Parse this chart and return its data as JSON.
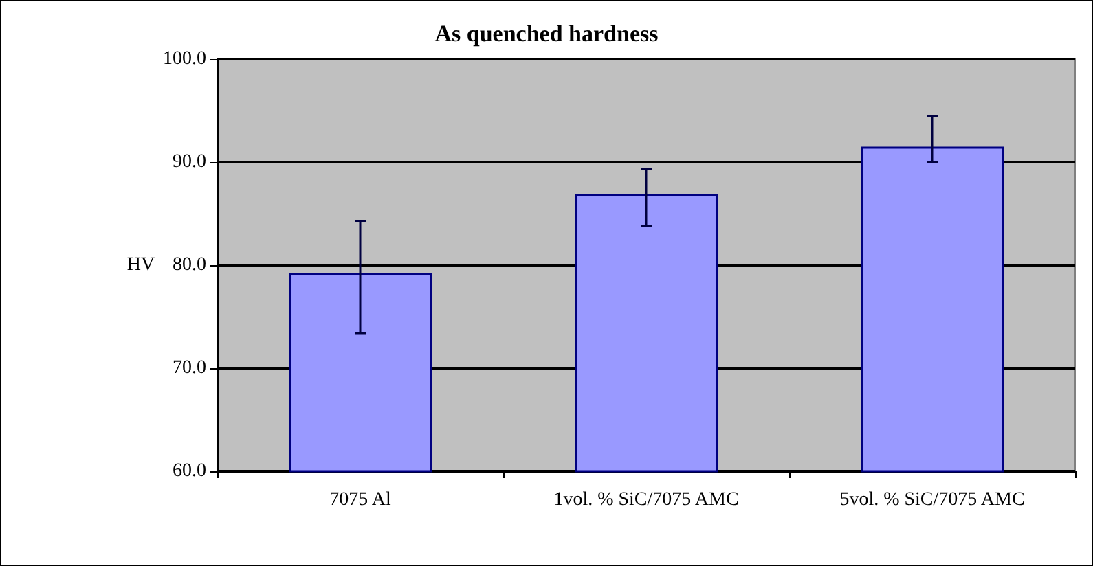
{
  "chart_data": {
    "type": "bar",
    "title": "As quenched hardness",
    "ylabel": "HV",
    "categories": [
      "7075 Al",
      "1vol. % SiC/7075 AMC",
      "5vol. % SiC/7075 AMC"
    ],
    "values": [
      79.2,
      86.9,
      91.5
    ],
    "color": "#9999ff",
    "errors": [
      [
        73.4,
        84.3
      ],
      [
        83.8,
        89.3
      ],
      [
        90.0,
        94.5
      ]
    ],
    "ylim": [
      60,
      100
    ],
    "yticks": [
      {
        "value": 60,
        "label": "60.0"
      },
      {
        "value": 70,
        "label": "70.0"
      },
      {
        "value": 80,
        "label": "80.0"
      },
      {
        "value": 90,
        "label": "90.0"
      },
      {
        "value": 100,
        "label": "100.0"
      }
    ],
    "grid": "y"
  }
}
